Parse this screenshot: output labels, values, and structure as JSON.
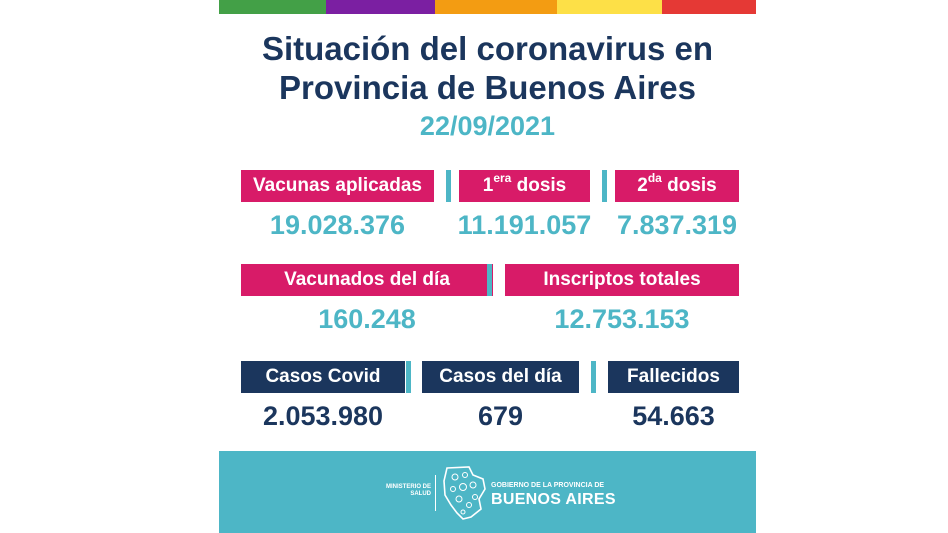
{
  "stripes": [
    "#43a047",
    "#7b1fa2",
    "#f39c12",
    "#fde047",
    "#e53935"
  ],
  "title_line1": "Situación del coronavirus en",
  "title_line2": "Provincia de Buenos Aires",
  "date": "22/09/2021",
  "vacunas": {
    "aplicadas_label": "Vacunas aplicadas",
    "aplicadas_value": "19.028.376",
    "dosis1_num": "1",
    "dosis1_sup": "era",
    "dosis1_word": "dosis",
    "dosis1_value": "11.191.057",
    "dosis2_num": "2",
    "dosis2_sup": "da",
    "dosis2_word": "dosis",
    "dosis2_value": "7.837.319"
  },
  "vacunados": {
    "dia_label": "Vacunados del día",
    "dia_value": "160.248",
    "inscriptos_label": "Inscriptos totales",
    "inscriptos_value": "12.753.153"
  },
  "casos": {
    "covid_label": "Casos Covid",
    "covid_value": "2.053.980",
    "dia_label": "Casos del día",
    "dia_value": "679",
    "fallecidos_label": "Fallecidos",
    "fallecidos_value": "54.663"
  },
  "footer": {
    "ministerio_line1": "MINISTERIO DE",
    "ministerio_line2": "SALUD",
    "gobierno": "GOBIERNO DE LA PROVINCIA DE",
    "provincia": "BUENOS AIRES"
  },
  "colors": {
    "pink": "#d81b68",
    "navy": "#1b365d",
    "teal": "#4db6c6"
  }
}
